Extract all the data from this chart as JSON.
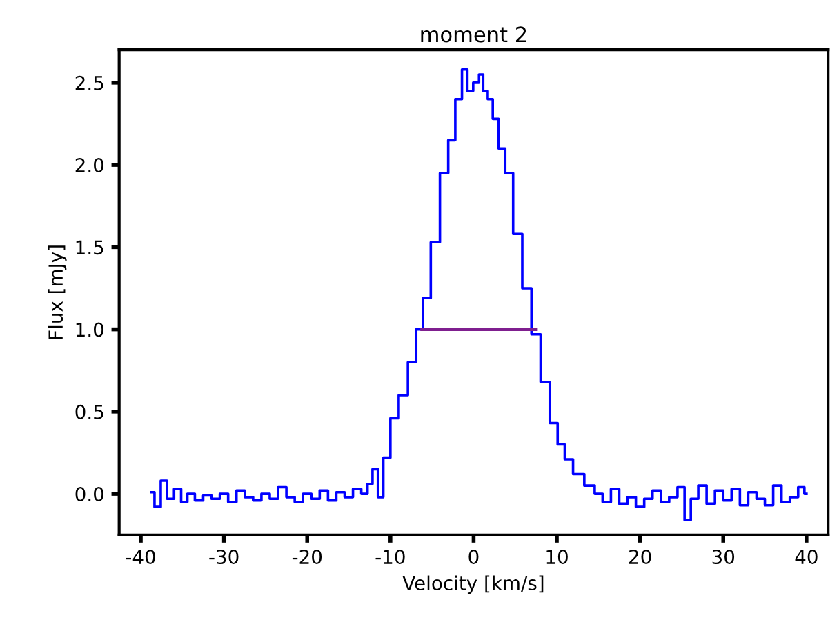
{
  "chart_data": {
    "type": "step",
    "title": "moment 2",
    "xlabel": "Velocity [km/s]",
    "ylabel": "Flux [mJy]",
    "xlim": [
      -42.6,
      42.6
    ],
    "xticks": [
      -40,
      -30,
      -20,
      -10,
      0,
      10,
      20,
      30,
      40
    ],
    "ylim": [
      -0.25,
      2.7
    ],
    "yticks": [
      {
        "value": 0,
        "label": "0.0"
      },
      {
        "value": 0.5,
        "label": "0.5"
      },
      {
        "value": 1,
        "label": "1.0"
      },
      {
        "value": 1.5,
        "label": "1.5"
      },
      {
        "value": 2,
        "label": "2.0"
      },
      {
        "value": 2.5,
        "label": "2.5"
      }
    ],
    "grid": false,
    "legend": false,
    "series": [
      {
        "color": "#0000ff",
        "x": [
          -38.7,
          -38,
          -37.2,
          -36.5,
          -35.5,
          -34.8,
          -34,
          -33,
          -32,
          -31,
          -30,
          -29,
          -28,
          -27,
          -26,
          -25,
          -24,
          -23,
          -22,
          -21,
          -20,
          -19,
          -18,
          -17,
          -16,
          -15,
          -14,
          -13,
          -12.5,
          -11.8,
          -11.2,
          -10.5,
          -9.5,
          -8.5,
          -7.3,
          -6.5,
          -5.7,
          -4.6,
          -3.5,
          -2.6,
          -1.8,
          -1.0,
          -0.5,
          0.4,
          0.9,
          1.4,
          2.0,
          2.6,
          3.4,
          4.2,
          5.3,
          6.4,
          7.5,
          8.6,
          9.7,
          10.5,
          11.4,
          12.5,
          14.1,
          15,
          16,
          17,
          18,
          19,
          20,
          21,
          22,
          23,
          24,
          25,
          25.7,
          26.5,
          27.5,
          28.5,
          29.5,
          30.5,
          31.5,
          32.5,
          33.5,
          34.5,
          35.5,
          36.5,
          37.5,
          38.5,
          39.5,
          40
        ],
        "values": [
          0.01,
          -0.08,
          0.08,
          -0.03,
          0.03,
          -0.05,
          0.0,
          -0.04,
          -0.01,
          -0.03,
          0.0,
          -0.05,
          0.02,
          -0.02,
          -0.04,
          0.0,
          -0.03,
          0.04,
          -0.02,
          -0.05,
          0.0,
          -0.03,
          0.02,
          -0.04,
          0.01,
          -0.02,
          0.03,
          0.0,
          0.06,
          0.15,
          -0.02,
          0.22,
          0.46,
          0.6,
          0.8,
          1.0,
          1.19,
          1.53,
          1.95,
          2.15,
          2.4,
          2.58,
          2.45,
          2.5,
          2.55,
          2.45,
          2.4,
          2.28,
          2.1,
          1.95,
          1.58,
          1.25,
          0.97,
          0.68,
          0.43,
          0.3,
          0.21,
          0.12,
          0.05,
          0.0,
          -0.05,
          0.03,
          -0.06,
          -0.02,
          -0.08,
          -0.03,
          0.02,
          -0.05,
          -0.02,
          0.04,
          -0.16,
          -0.03,
          0.05,
          -0.06,
          0.02,
          -0.04,
          0.03,
          -0.07,
          0.01,
          -0.03,
          -0.07,
          0.05,
          -0.05,
          -0.02,
          0.04,
          0.0
        ]
      },
      {
        "type": "line",
        "color": "#7f1f8f",
        "x": [
          -6.2,
          7.5
        ],
        "values": [
          1.0,
          1.0
        ]
      }
    ]
  }
}
